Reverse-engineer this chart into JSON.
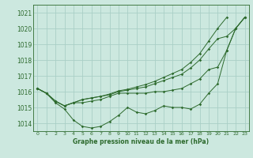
{
  "bg_color": "#cce8df",
  "grid_color": "#aacfc6",
  "line_color": "#2d6a2d",
  "xlabel": "Graphe pression niveau de la mer (hPa)",
  "ylim": [
    1013.5,
    1021.5
  ],
  "xlim": [
    -0.5,
    23.5
  ],
  "yticks": [
    1014,
    1015,
    1016,
    1017,
    1018,
    1019,
    1020,
    1021
  ],
  "xticks": [
    0,
    1,
    2,
    3,
    4,
    5,
    6,
    7,
    8,
    9,
    10,
    11,
    12,
    13,
    14,
    15,
    16,
    17,
    18,
    19,
    20,
    21,
    22,
    23
  ],
  "series": [
    [
      1016.2,
      1015.9,
      1015.3,
      1014.9,
      1014.2,
      1013.8,
      1013.7,
      1013.8,
      1014.1,
      1014.5,
      1015.0,
      1014.7,
      1014.6,
      1014.8,
      1015.1,
      1015.0,
      1015.0,
      1014.9,
      1015.2,
      1015.9,
      1016.5,
      1018.6,
      1020.0,
      1020.7
    ],
    [
      1016.2,
      1015.9,
      1015.4,
      1015.1,
      1015.3,
      1015.3,
      1015.4,
      1015.5,
      1015.7,
      1015.9,
      1015.9,
      1015.9,
      1015.9,
      1016.0,
      1016.0,
      1016.1,
      1016.2,
      1016.5,
      1016.8,
      1017.4,
      1017.55,
      1018.6,
      1020.0,
      1020.7
    ],
    [
      1016.2,
      1015.9,
      1015.4,
      1015.1,
      1015.3,
      1015.5,
      1015.6,
      1015.7,
      1015.8,
      1016.0,
      1016.1,
      1016.2,
      1016.3,
      1016.5,
      1016.7,
      1016.9,
      1017.1,
      1017.5,
      1018.0,
      1018.7,
      1019.35,
      1019.5,
      1020.0,
      1020.7
    ],
    [
      1016.2,
      1015.9,
      1015.4,
      1015.1,
      1015.3,
      1015.5,
      1015.6,
      1015.7,
      1015.85,
      1016.05,
      1016.15,
      1016.3,
      1016.45,
      1016.65,
      1016.9,
      1017.15,
      1017.4,
      1017.85,
      1018.4,
      1019.2,
      1020.0,
      1020.7,
      null,
      null
    ]
  ],
  "xlabel_fontsize": 5.5,
  "ytick_fontsize": 5.5,
  "xtick_fontsize": 4.5,
  "linewidth": 0.7,
  "markersize": 1.8
}
